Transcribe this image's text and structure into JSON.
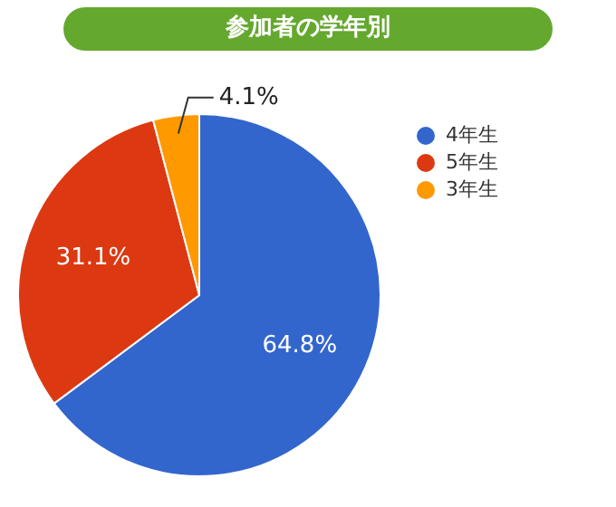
{
  "chart_data": {
    "type": "pie",
    "title": "参加者の学年別",
    "categories": [
      "4年生",
      "5年生",
      "3年生"
    ],
    "values": [
      64.8,
      31.1,
      4.1
    ],
    "colors": [
      "#3366cc",
      "#dc3912",
      "#ff9900"
    ],
    "value_labels": [
      "64.8%",
      "31.1%",
      "4.1%"
    ],
    "legend": "right"
  }
}
